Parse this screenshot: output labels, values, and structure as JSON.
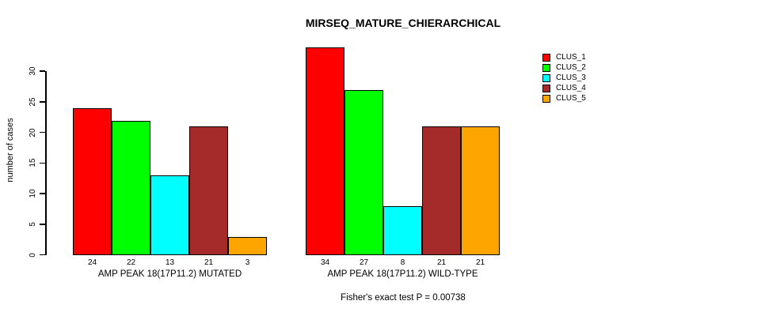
{
  "title": "MIRSEQ_MATURE_CHIERARCHICAL",
  "chart_data": {
    "type": "bar",
    "title": "MIRSEQ_MATURE_CHIERARCHICAL",
    "ylabel": "number of cases",
    "yticks": [
      0,
      5,
      10,
      15,
      20,
      25,
      30
    ],
    "ylim": [
      0,
      34
    ],
    "grid": false,
    "legend_position": "top-right",
    "series": [
      {
        "name": "CLUS_1",
        "color": "#FF0000"
      },
      {
        "name": "CLUS_2",
        "color": "#00FF00"
      },
      {
        "name": "CLUS_3",
        "color": "#00FFFF"
      },
      {
        "name": "CLUS_4",
        "color": "#A52A2A"
      },
      {
        "name": "CLUS_5",
        "color": "#FFA500"
      }
    ],
    "groups": [
      {
        "label": "AMP PEAK 18(17P11.2) MUTATED",
        "values": [
          24,
          22,
          13,
          21,
          3
        ]
      },
      {
        "label": "AMP PEAK 18(17P11.2) WILD-TYPE",
        "values": [
          34,
          27,
          8,
          21,
          21
        ]
      }
    ],
    "footnote": "Fisher's exact test P = 0.00738"
  }
}
